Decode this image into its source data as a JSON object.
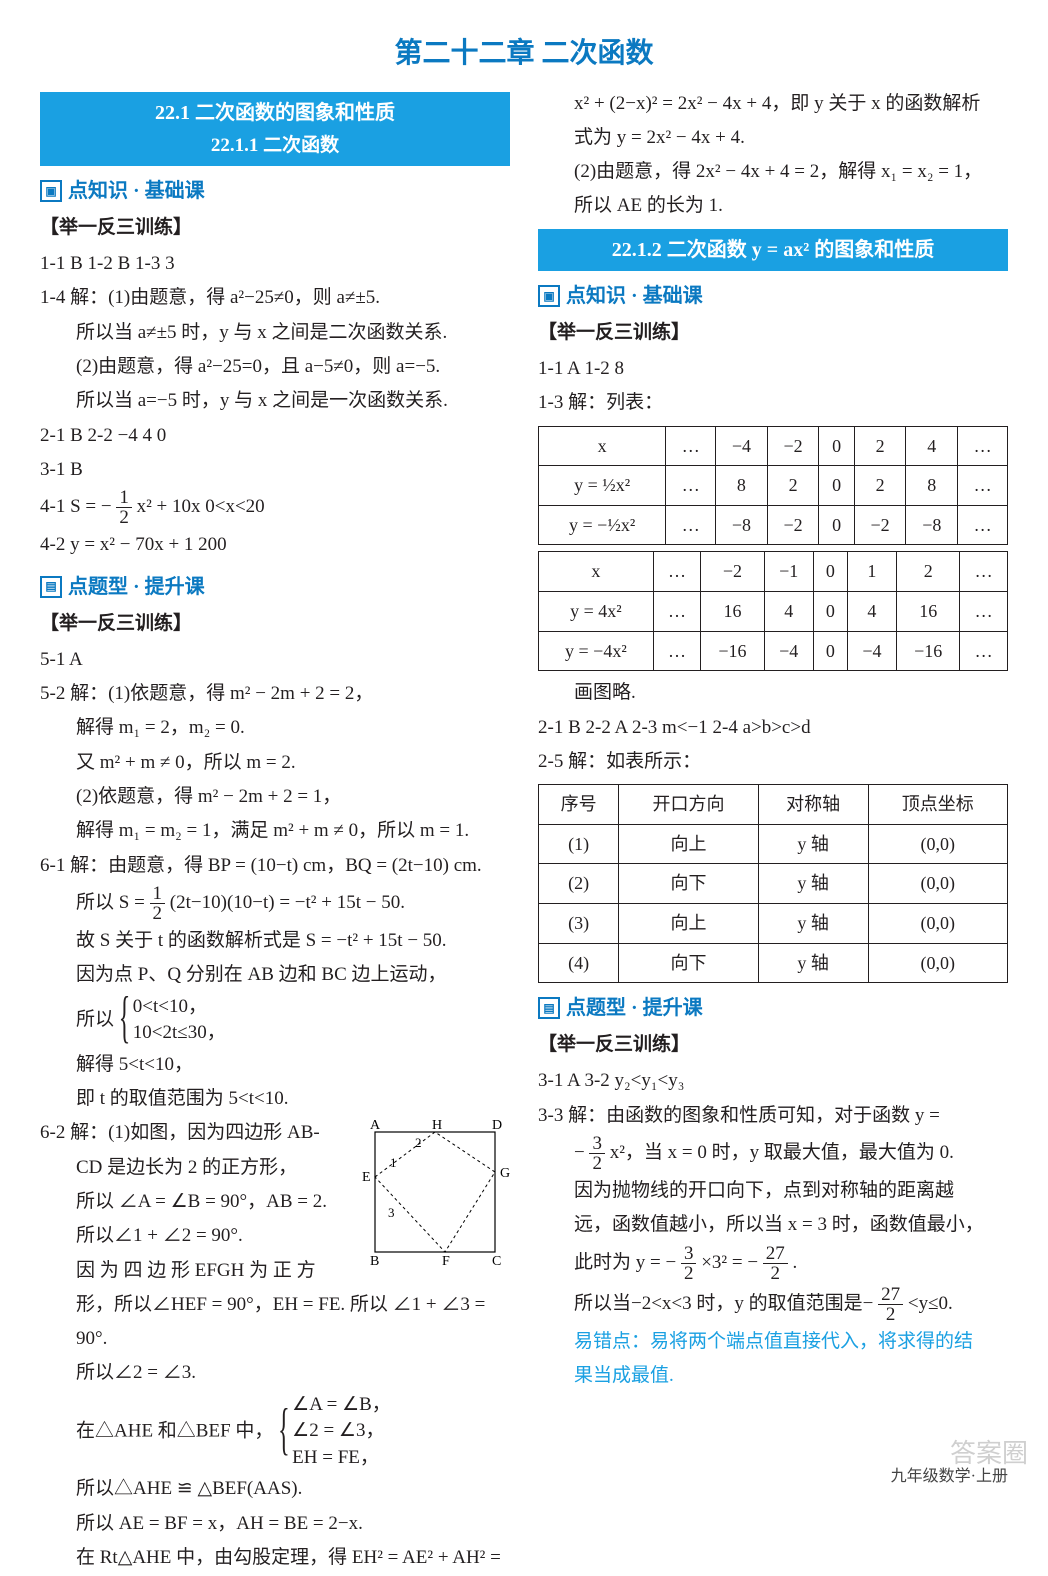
{
  "page": {
    "title": "第二十二章  二次函数",
    "footer": "九年级数学·上册",
    "watermark": "答案圈"
  },
  "left": {
    "band1_line1": "22.1  二次函数的图象和性质",
    "band1_line2": "22.1.1  二次函数",
    "sub_basic": "点知识 · 基础课",
    "brace": "【举一反三训练】",
    "l1": "1-1 B   1-2 B   1-3 3",
    "l2": "1-4 解：(1)由题意，得 a²−25≠0，则 a≠±5.",
    "l3": "所以当 a≠±5 时，y 与 x 之间是二次函数关系.",
    "l4": "(2)由题意，得 a²−25=0，且 a−5≠0，则 a=−5.",
    "l5": "所以当 a=−5 时，y 与 x 之间是一次函数关系.",
    "l6": "2-1 B   2-2 −4   4   0",
    "l7": "3-1 B",
    "l8a": "4-1 S = −",
    "l8b": "x² + 10x   0<x<20",
    "l9": "4-2 y = x² − 70x + 1 200",
    "sub_up": "点题型 · 提升课",
    "l10": "5-1 A",
    "l11": "5-2 解：(1)依题意，得 m² − 2m + 2 = 2，",
    "l12": "解得 m₁ = 2，m₂ = 0.",
    "l13": "又 m² + m ≠ 0，所以 m = 2.",
    "l14": "(2)依题意，得 m² − 2m + 2 = 1，",
    "l15": "解得 m₁ = m₂ = 1，满足 m² + m ≠ 0，所以 m = 1.",
    "l16": "6-1 解：由题意，得 BP = (10−t) cm，BQ = (2t−10) cm.",
    "l17a": "所以 S = ",
    "l17b": "(2t−10)(10−t) = −t² + 15t − 50.",
    "l18": "故 S 关于 t 的函数解析式是 S = −t² + 15t − 50.",
    "l19": "因为点 P、Q 分别在 AB 边和 BC 边上运动，",
    "l20a": "所以",
    "sys1": "0<t<10，",
    "sys2": "10<2t≤30，",
    "l21": "解得 5<t<10，",
    "l22": "即 t 的取值范围为 5<t<10.",
    "l23": "6-2 解：(1)如图，因为四边形 AB-",
    "l24": "CD 是边长为 2 的正方形，",
    "l25": "所以 ∠A = ∠B = 90°，AB = 2.",
    "l26": "所以∠1 + ∠2 = 90°.",
    "l27": "因 为 四 边 形  EFGH  为 正 方",
    "l28": "形，所以∠HEF = 90°，EH = FE. 所以 ∠1 + ∠3 =",
    "l29": "90°.",
    "l30": "所以∠2 = ∠3.",
    "l31": "在△AHE 和△BEF 中，",
    "sys3": "∠A = ∠B，",
    "sys4": "∠2 = ∠3，",
    "sys5": "EH = FE，",
    "l32": "所以△AHE ≌ △BEF(AAS).",
    "l33": "所以 AE = BF = x，AH = BE = 2−x.",
    "l34": "在 Rt△AHE 中，由勾股定理，得 EH² = AE² + AH² =",
    "diagram_labels": {
      "A": "A",
      "H": "H",
      "D": "D",
      "E": "E",
      "G": "G",
      "B": "B",
      "F": "F",
      "C": "C",
      "n1": "1",
      "n2": "2",
      "n3": "3"
    }
  },
  "right": {
    "r1": "x² + (2−x)² = 2x² − 4x + 4，即 y 关于 x 的函数解析",
    "r2": "式为 y = 2x² − 4x + 4.",
    "r3": "(2)由题意，得 2x² − 4x + 4 = 2，解得 x₁ = x₂ = 1，",
    "r4": "所以 AE 的长为 1.",
    "band2": "22.1.2  二次函数 y = ax² 的图象和性质",
    "sub_basic2": "点知识 · 基础课",
    "brace2": "【举一反三训练】",
    "r5": "1-1 A   1-2 8",
    "r6": "1-3 解：列表：",
    "table1": {
      "rows": [
        [
          "x",
          "…",
          "−4",
          "−2",
          "0",
          "2",
          "4",
          "…"
        ],
        [
          "y = ½x²",
          "…",
          "8",
          "2",
          "0",
          "2",
          "8",
          "…"
        ],
        [
          "y = −½x²",
          "…",
          "−8",
          "−2",
          "0",
          "−2",
          "−8",
          "…"
        ]
      ]
    },
    "table2": {
      "rows": [
        [
          "x",
          "…",
          "−2",
          "−1",
          "0",
          "1",
          "2",
          "…"
        ],
        [
          "y = 4x²",
          "…",
          "16",
          "4",
          "0",
          "4",
          "16",
          "…"
        ],
        [
          "y = −4x²",
          "…",
          "−16",
          "−4",
          "0",
          "−4",
          "−16",
          "…"
        ]
      ]
    },
    "r7": "画图略.",
    "r8": "2-1 B   2-2 A   2-3 m<−1   2-4 a>b>c>d",
    "r9": "2-5 解：如表所示：",
    "table3": {
      "header": [
        "序号",
        "开口方向",
        "对称轴",
        "顶点坐标"
      ],
      "rows": [
        [
          "(1)",
          "向上",
          "y 轴",
          "(0,0)"
        ],
        [
          "(2)",
          "向下",
          "y 轴",
          "(0,0)"
        ],
        [
          "(3)",
          "向上",
          "y 轴",
          "(0,0)"
        ],
        [
          "(4)",
          "向下",
          "y 轴",
          "(0,0)"
        ]
      ]
    },
    "sub_up2": "点题型 · 提升课",
    "brace3": "【举一反三训练】",
    "r10": "3-1 A   3-2 y₂<y₁<y₃",
    "r11": "3-3 解：由函数的图象和性质可知，对于函数 y =",
    "r12a": "−",
    "r12b": "x²，当 x = 0 时，y 取最大值，最大值为 0.",
    "r13": "因为抛物线的开口向下，点到对称轴的距离越",
    "r14": "远，函数值越小，所以当 x = 3 时，函数值最小，",
    "r15a": "此时为 y = −",
    "r15b": "×3² = −",
    "r15c": ".",
    "r16a": "所以当−2<x<3 时，y 的取值范围是−",
    "r16b": "<y≤0.",
    "note1": "易错点：易将两个端点值直接代入，将求得的结",
    "note2": "果当成最值."
  }
}
